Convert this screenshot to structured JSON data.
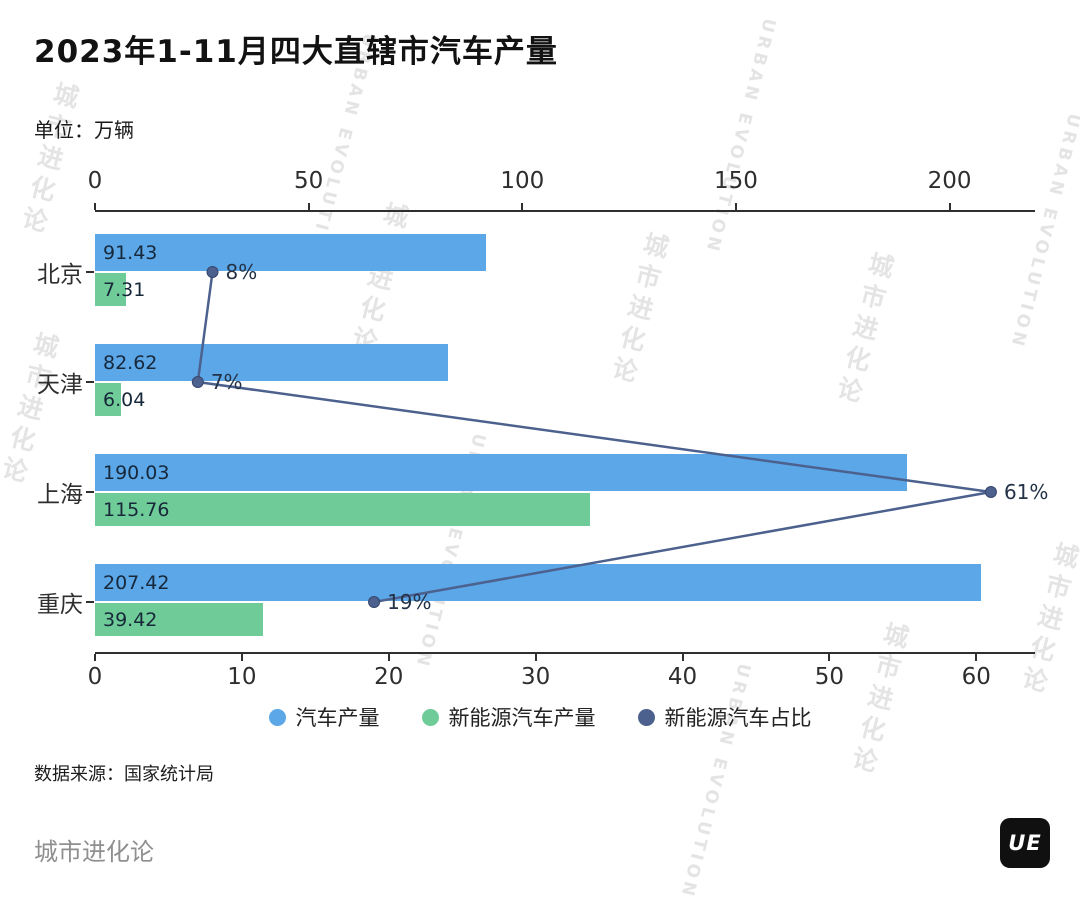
{
  "title": "2023年1-11月四大直辖市汽车产量",
  "unit_label": "单位：万辆",
  "source_label": "数据来源：国家统计局",
  "footer_brand": "城市进化论",
  "logo_text": "UE",
  "watermark": {
    "cn": "城市进化论",
    "en": "URBAN EVOLUTION"
  },
  "chart_data": {
    "type": "bar",
    "orientation": "horizontal",
    "title": "2023年1-11月四大直辖市汽车产量",
    "unit": "万辆",
    "categories": [
      "北京",
      "天津",
      "上海",
      "重庆"
    ],
    "series": [
      {
        "name": "汽车产量",
        "type": "bar",
        "axis": "top",
        "color": "#5BA7E8",
        "values": [
          91.43,
          82.62,
          190.03,
          207.42
        ],
        "value_labels": [
          "91.43",
          "82.62",
          "190.03",
          "207.42"
        ]
      },
      {
        "name": "新能源汽车产量",
        "type": "bar",
        "axis": "top",
        "color": "#6FCB97",
        "values": [
          7.31,
          6.04,
          115.76,
          39.42
        ],
        "value_labels": [
          "7.31",
          "6.04",
          "115.76",
          "39.42"
        ]
      },
      {
        "name": "新能源汽车占比",
        "type": "line",
        "axis": "bottom",
        "color": "#4C618E",
        "values": [
          8,
          7,
          61,
          19
        ],
        "value_labels": [
          "8%",
          "7%",
          "61%",
          "19%"
        ]
      }
    ],
    "top_axis": {
      "tick_labels": [
        "0",
        "50",
        "100",
        "150",
        "200"
      ],
      "tick_values": [
        0,
        50,
        100,
        150,
        200
      ],
      "max": 220
    },
    "bottom_axis": {
      "tick_labels": [
        "0",
        "10",
        "20",
        "30",
        "40",
        "50",
        "60"
      ],
      "tick_values": [
        0,
        10,
        20,
        30,
        40,
        50,
        60
      ],
      "max": 64
    },
    "legend": [
      "汽车产量",
      "新能源汽车产量",
      "新能源汽车占比"
    ],
    "legend_position": "bottom",
    "grid": false
  }
}
